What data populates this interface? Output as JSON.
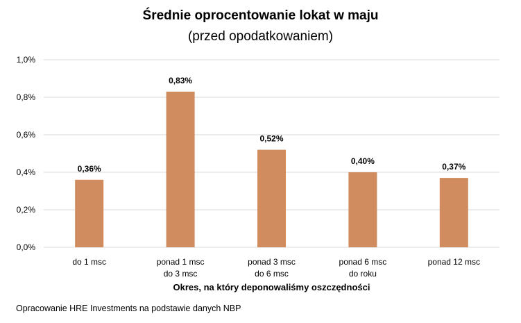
{
  "chart_data": {
    "type": "bar",
    "title": "Średnie oprocentowanie lokat w maju",
    "subtitle": "(przed opodatkowaniem)",
    "categories": [
      [
        "do 1 msc"
      ],
      [
        "ponad 1 msc",
        "do 3 msc"
      ],
      [
        "ponad 3 msc",
        "do 6 msc"
      ],
      [
        "ponad 6 msc",
        "do roku"
      ],
      [
        "ponad 12 msc"
      ]
    ],
    "values": [
      0.36,
      0.83,
      0.52,
      0.4,
      0.37
    ],
    "data_labels": [
      "0,36%",
      "0,83%",
      "0,52%",
      "0,40%",
      "0,37%"
    ],
    "xlabel": "Okres, na który deponowaliśmy oszczędności",
    "ylabel": "",
    "ylim": [
      0,
      1.0
    ],
    "yticks": [
      0,
      0.2,
      0.4,
      0.6,
      0.8,
      1.0
    ],
    "ytick_labels": [
      "0,0%",
      "0,2%",
      "0,4%",
      "0,6%",
      "0,8%",
      "1,0%"
    ],
    "grid": true,
    "legend": "none",
    "bar_color": "#d08c5e",
    "grid_color": "#d9d9d9"
  },
  "source": "Opracowanie HRE Investments na podstawie danych NBP"
}
